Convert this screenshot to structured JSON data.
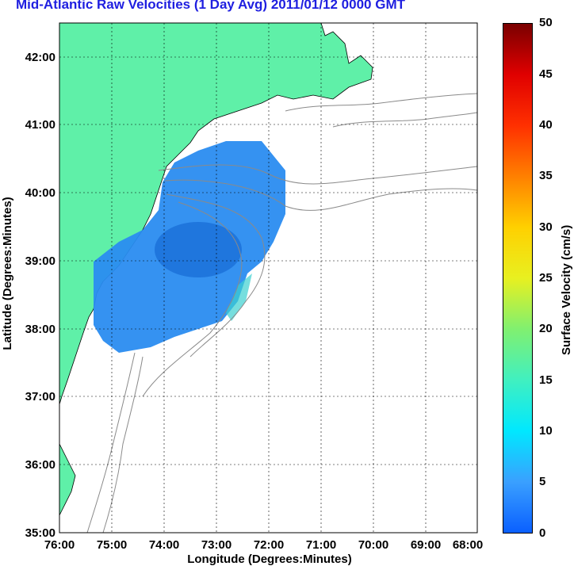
{
  "title": "Mid-Atlantic Raw Velocities (1 Day Avg) 2011/01/12 0000 GMT",
  "axes": {
    "xlabel": "Longitude (Degrees:Minutes)",
    "ylabel": "Latitude (Degrees:Minutes)",
    "xticks": [
      "76:00",
      "75:00",
      "74:00",
      "73:00",
      "72:00",
      "71:00",
      "70:00",
      "69:00",
      "68:00"
    ],
    "yticks": [
      "42:00",
      "41:00",
      "40:00",
      "39:00",
      "38:00",
      "37:00",
      "36:00",
      "35:00"
    ]
  },
  "colorbar": {
    "label": "Surface Velocity (cm/s)",
    "ticks": [
      "50",
      "45",
      "40",
      "35",
      "30",
      "25",
      "20",
      "15",
      "10",
      "5",
      "0"
    ],
    "range": [
      0,
      50
    ]
  },
  "colors": {
    "land": "#5ff0a8",
    "title": "#1f1fe0",
    "field_main": "#2a8cf0",
    "field_dark": "#1a6fd8",
    "contour": "#8a8a8a"
  }
}
